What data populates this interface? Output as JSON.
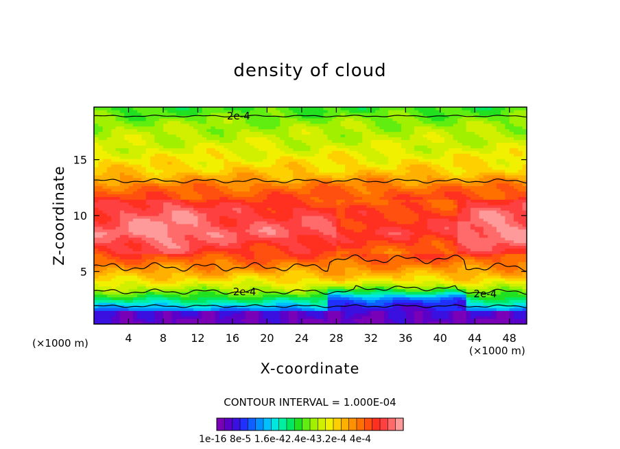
{
  "title": "density of cloud",
  "xlabel": "X-coordinate",
  "ylabel": "Z-coordinate",
  "x_unit_left": "(×1000 m)",
  "x_unit_right": "(×1000 m)",
  "contour_interval_text": "CONTOUR INTERVAL = 1.000E-04",
  "colorbar_labels_text": "1e-16 8e-5 1.6e-42.4e-43.2e-4 4e-4",
  "chart_data": {
    "type": "heatmap",
    "title": "density of cloud",
    "xlabel": "X-coordinate",
    "ylabel": "Z-coordinate",
    "x_unit": "(×1000 m)",
    "xlim": [
      0,
      50
    ],
    "ylim": [
      0.3,
      19.7
    ],
    "x_ticks": [
      4,
      8,
      12,
      16,
      20,
      24,
      28,
      32,
      36,
      40,
      44,
      48
    ],
    "y_ticks": [
      5,
      10,
      15
    ],
    "contour_interval": "1.000E-04",
    "contour_labels": [
      {
        "text": "2e-4",
        "x": 16.7,
        "z": 18.9
      },
      {
        "text": "2e-4",
        "x": 17.4,
        "z": 3.2
      },
      {
        "text": "2e-4",
        "x": 45.2,
        "z": 3.0
      }
    ],
    "colorbar": {
      "labels": [
        "1e-16",
        "8e-5",
        "1.6e-4",
        "2.4e-4",
        "3.2e-4",
        "4e-4"
      ],
      "colors": [
        "#7a00b8",
        "#5a00c8",
        "#3a10e0",
        "#2030ff",
        "#1060ff",
        "#0090ff",
        "#00c0ff",
        "#00e6e0",
        "#00f0a0",
        "#00e860",
        "#20e020",
        "#60ee10",
        "#a0f000",
        "#d0f000",
        "#f0f000",
        "#ffd000",
        "#ffb000",
        "#ff9000",
        "#ff7000",
        "#ff5010",
        "#ff3020",
        "#ff4040",
        "#ff6a6a",
        "#ff9a9a"
      ]
    },
    "vertical_profile": [
      {
        "z": 0.6,
        "value": 2e-05
      },
      {
        "z": 1.2,
        "value": 5e-05
      },
      {
        "z": 2.0,
        "value": 0.00012
      },
      {
        "z": 3.0,
        "value": 0.00019
      },
      {
        "z": 4.0,
        "value": 0.00024
      },
      {
        "z": 5.0,
        "value": 0.00028
      },
      {
        "z": 6.5,
        "value": 0.00033
      },
      {
        "z": 8.5,
        "value": 0.00037
      },
      {
        "z": 10.5,
        "value": 0.00035
      },
      {
        "z": 12.5,
        "value": 0.00031
      },
      {
        "z": 14.0,
        "value": 0.00026
      },
      {
        "z": 16.0,
        "value": 0.00023
      },
      {
        "z": 18.0,
        "value": 0.00021
      },
      {
        "z": 19.7,
        "value": 0.00018
      }
    ]
  }
}
